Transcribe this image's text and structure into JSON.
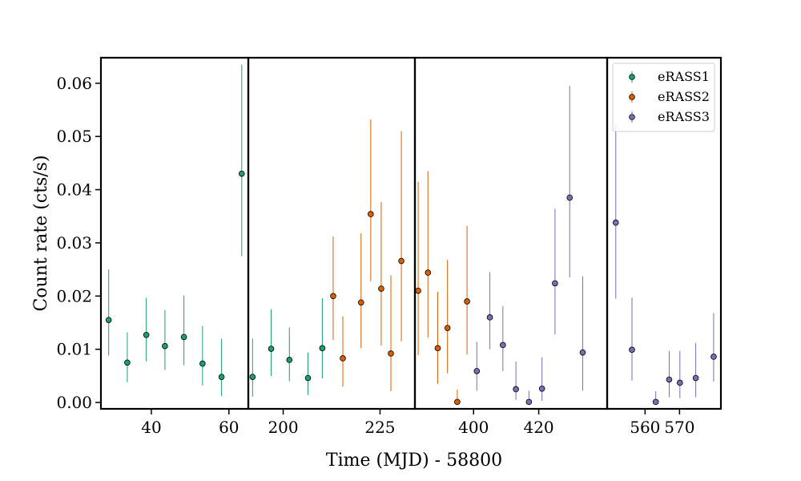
{
  "chart_data": {
    "type": "scatter",
    "xlabel": "Time (MJD) - 58800",
    "ylabel": "Count rate (cts/s)",
    "ylim": [
      -0.0012,
      0.0648
    ],
    "yticks": [
      "0.00",
      "0.01",
      "0.02",
      "0.03",
      "0.04",
      "0.05",
      "0.06"
    ],
    "ytick_values": [
      0,
      0.01,
      0.02,
      0.03,
      0.04,
      0.05,
      0.06
    ],
    "legend_position": "top-right",
    "panels": [
      {
        "xlim": [
          27,
          65
        ],
        "xticks": [
          "40",
          "60"
        ],
        "xtick_values": [
          40,
          60
        ]
      },
      {
        "xlim": [
          191,
          234
        ],
        "xticks": [
          "200",
          "225"
        ],
        "xtick_values": [
          200,
          225
        ]
      },
      {
        "xlim": [
          382,
          441
        ],
        "xticks": [
          "400",
          "420"
        ],
        "xtick_values": [
          400,
          420
        ]
      },
      {
        "xlim": [
          549,
          582
        ],
        "xticks": [
          "560",
          "570"
        ],
        "xtick_values": [
          560,
          570
        ]
      }
    ],
    "series": [
      {
        "name": "eRASS1",
        "color": "#1b9e77",
        "points": [
          {
            "p": 0,
            "x": 29,
            "y": 0.0155,
            "lo": 0.0088,
            "hi": 0.025
          },
          {
            "p": 0,
            "x": 33.8,
            "y": 0.0075,
            "lo": 0.0038,
            "hi": 0.0132
          },
          {
            "p": 0,
            "x": 38.7,
            "y": 0.0127,
            "lo": 0.0077,
            "hi": 0.0197
          },
          {
            "p": 0,
            "x": 43.5,
            "y": 0.0106,
            "lo": 0.0061,
            "hi": 0.0174
          },
          {
            "p": 0,
            "x": 48.4,
            "y": 0.0123,
            "lo": 0.007,
            "hi": 0.0201
          },
          {
            "p": 0,
            "x": 53.2,
            "y": 0.0073,
            "lo": 0.0032,
            "hi": 0.0144
          },
          {
            "p": 0,
            "x": 58.1,
            "y": 0.0048,
            "lo": 0.0012,
            "hi": 0.012
          },
          {
            "p": 0,
            "x": 63.3,
            "y": 0.043,
            "lo": 0.0275,
            "hi": 0.0635
          },
          {
            "p": 1,
            "x": 192.1,
            "y": 0.0048,
            "lo": 0.0011,
            "hi": 0.012
          },
          {
            "p": 1,
            "x": 196.9,
            "y": 0.0101,
            "lo": 0.005,
            "hi": 0.0175
          },
          {
            "p": 1,
            "x": 201.6,
            "y": 0.008,
            "lo": 0.004,
            "hi": 0.0141
          },
          {
            "p": 1,
            "x": 206.4,
            "y": 0.0046,
            "lo": 0.0014,
            "hi": 0.0094
          },
          {
            "p": 1,
            "x": 210.1,
            "y": 0.0102,
            "lo": 0.0045,
            "hi": 0.0196
          }
        ]
      },
      {
        "name": "eRASS2",
        "color": "#d95f02",
        "points": [
          {
            "p": 1,
            "x": 212.9,
            "y": 0.02,
            "lo": 0.0118,
            "hi": 0.0312
          },
          {
            "p": 1,
            "x": 215.4,
            "y": 0.0083,
            "lo": 0.003,
            "hi": 0.0162
          },
          {
            "p": 1,
            "x": 220.1,
            "y": 0.0188,
            "lo": 0.0102,
            "hi": 0.0318
          },
          {
            "p": 1,
            "x": 222.6,
            "y": 0.0354,
            "lo": 0.0228,
            "hi": 0.0532
          },
          {
            "p": 1,
            "x": 225.3,
            "y": 0.0214,
            "lo": 0.0107,
            "hi": 0.0377
          },
          {
            "p": 1,
            "x": 227.8,
            "y": 0.0092,
            "lo": 0.0021,
            "hi": 0.0239
          },
          {
            "p": 1,
            "x": 230.5,
            "y": 0.0266,
            "lo": 0.0115,
            "hi": 0.051
          },
          {
            "p": 2,
            "x": 383.0,
            "y": 0.021,
            "lo": 0.0089,
            "hi": 0.0415
          },
          {
            "p": 2,
            "x": 386.0,
            "y": 0.0244,
            "lo": 0.0122,
            "hi": 0.0435
          },
          {
            "p": 2,
            "x": 389.0,
            "y": 0.0102,
            "lo": 0.0035,
            "hi": 0.0208
          },
          {
            "p": 2,
            "x": 392.0,
            "y": 0.014,
            "lo": 0.0055,
            "hi": 0.0268
          },
          {
            "p": 2,
            "x": 395.0,
            "y": 0.0001,
            "lo": 0.0,
            "hi": 0.0024
          },
          {
            "p": 2,
            "x": 398.0,
            "y": 0.019,
            "lo": 0.009,
            "hi": 0.0332
          }
        ]
      },
      {
        "name": "eRASS3",
        "color": "#7570b3",
        "points": [
          {
            "p": 2,
            "x": 401.0,
            "y": 0.0059,
            "lo": 0.0022,
            "hi": 0.0114
          },
          {
            "p": 2,
            "x": 405.0,
            "y": 0.016,
            "lo": 0.01,
            "hi": 0.0245
          },
          {
            "p": 2,
            "x": 409.0,
            "y": 0.0108,
            "lo": 0.0059,
            "hi": 0.0181
          },
          {
            "p": 2,
            "x": 413.0,
            "y": 0.0025,
            "lo": 0.0005,
            "hi": 0.0077
          },
          {
            "p": 2,
            "x": 417.0,
            "y": 0.0001,
            "lo": 0.0,
            "hi": 0.0022
          },
          {
            "p": 2,
            "x": 421.0,
            "y": 0.0026,
            "lo": 0.0003,
            "hi": 0.0085
          },
          {
            "p": 2,
            "x": 425.0,
            "y": 0.0224,
            "lo": 0.0128,
            "hi": 0.0364
          },
          {
            "p": 2,
            "x": 429.5,
            "y": 0.0385,
            "lo": 0.0235,
            "hi": 0.0595
          },
          {
            "p": 2,
            "x": 433.5,
            "y": 0.0094,
            "lo": 0.0022,
            "hi": 0.0237
          },
          {
            "p": 3,
            "x": 551.5,
            "y": 0.0338,
            "lo": 0.0195,
            "hi": 0.0525
          },
          {
            "p": 3,
            "x": 556.2,
            "y": 0.0099,
            "lo": 0.0041,
            "hi": 0.0197
          },
          {
            "p": 3,
            "x": 563.1,
            "y": 0.0001,
            "lo": 0.0,
            "hi": 0.0021
          },
          {
            "p": 3,
            "x": 567.0,
            "y": 0.0043,
            "lo": 0.001,
            "hi": 0.0097
          },
          {
            "p": 3,
            "x": 570.1,
            "y": 0.0037,
            "lo": 0.0008,
            "hi": 0.0097
          },
          {
            "p": 3,
            "x": 574.7,
            "y": 0.0046,
            "lo": 0.001,
            "hi": 0.0112
          },
          {
            "p": 3,
            "x": 579.9,
            "y": 0.0086,
            "lo": 0.0039,
            "hi": 0.0168
          }
        ]
      }
    ]
  }
}
